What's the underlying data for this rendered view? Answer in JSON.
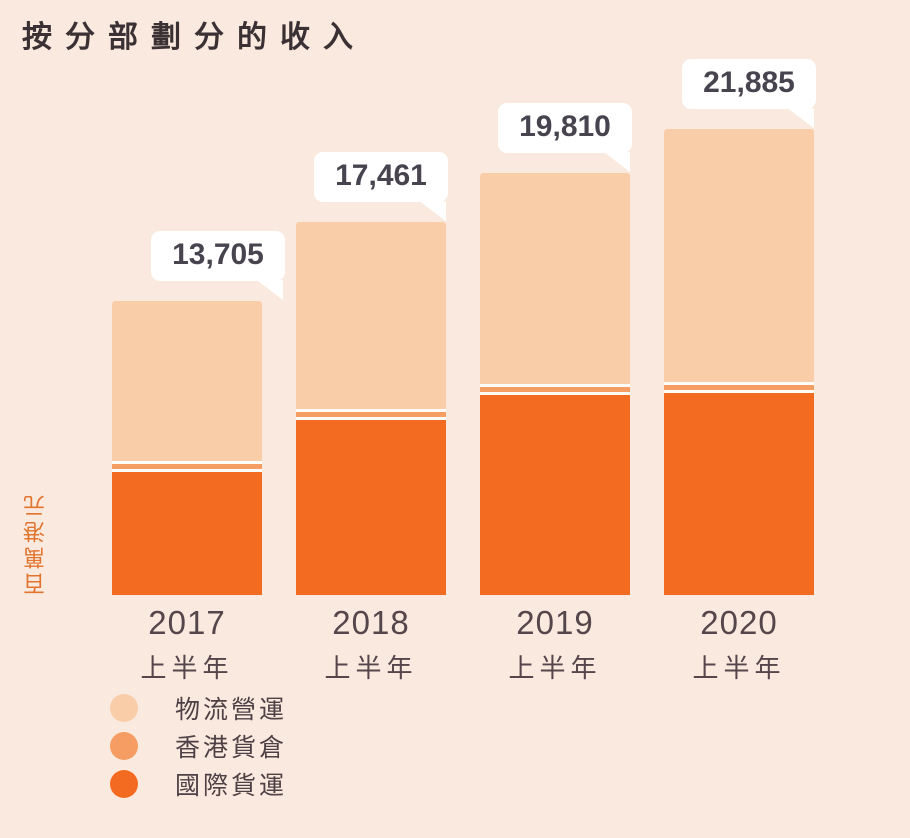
{
  "title": "按分部劃分的收入",
  "colors": {
    "background": "#FAE9DE",
    "callout_background": "#FFFFFF",
    "title_text": "#3B3134",
    "axis_text": "#55464C",
    "value_text": "#48444F",
    "y_label_text": "#E1742F",
    "separator": "#FFFDFA"
  },
  "chart_data": {
    "type": "bar",
    "stacked": true,
    "title": "按分部劃分的收入",
    "ylabel": "百萬港元",
    "xlabel": "",
    "grid": false,
    "legend_position": "bottom-left",
    "categories": [
      "2017 上半年",
      "2018 上半年",
      "2019 上半年",
      "2020 上半年"
    ],
    "years": [
      "2017",
      "2018",
      "2019",
      "2020"
    ],
    "half_label": "上半年",
    "totals": [
      13705,
      17461,
      19810,
      21885
    ],
    "total_labels": [
      "13,705",
      "17,461",
      "19,810",
      "21,885"
    ],
    "ylim": [
      0,
      23000
    ],
    "series": [
      {
        "name": "物流營運",
        "color": "#FACDA9",
        "values_estimated": [
          7615,
          8891,
          10050,
          12025
        ]
      },
      {
        "name": "香港貨倉",
        "color": "#F59D62",
        "values_estimated": [
          240,
          240,
          240,
          240
        ]
      },
      {
        "name": "國際貨運",
        "color": "#F26B21",
        "values_estimated": [
          5850,
          8330,
          9520,
          9620
        ]
      }
    ]
  }
}
